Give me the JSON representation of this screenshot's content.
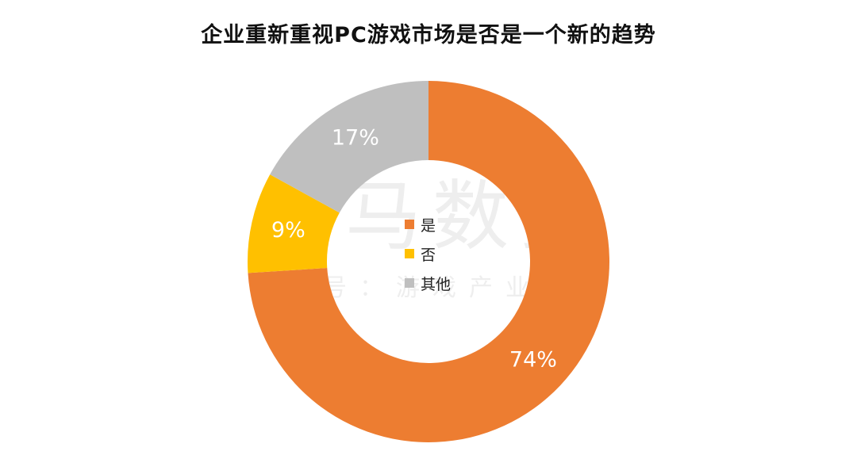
{
  "title": "企业重新重视PC游戏市场是否是一个新的趋势",
  "watermark": {
    "main": "伽马数据",
    "sub": "微信号：游戏产业报告"
  },
  "chart_data": {
    "type": "pie",
    "donut": true,
    "title": "企业重新重视PC游戏市场是否是一个新的趋势",
    "categories": [
      "是",
      "否",
      "其他"
    ],
    "values": [
      74,
      9,
      17
    ],
    "labels": [
      "74%",
      "9%",
      "17%"
    ],
    "colors": [
      "#ED7D31",
      "#FFC000",
      "#BFBFBF"
    ],
    "legend_position": "center"
  }
}
